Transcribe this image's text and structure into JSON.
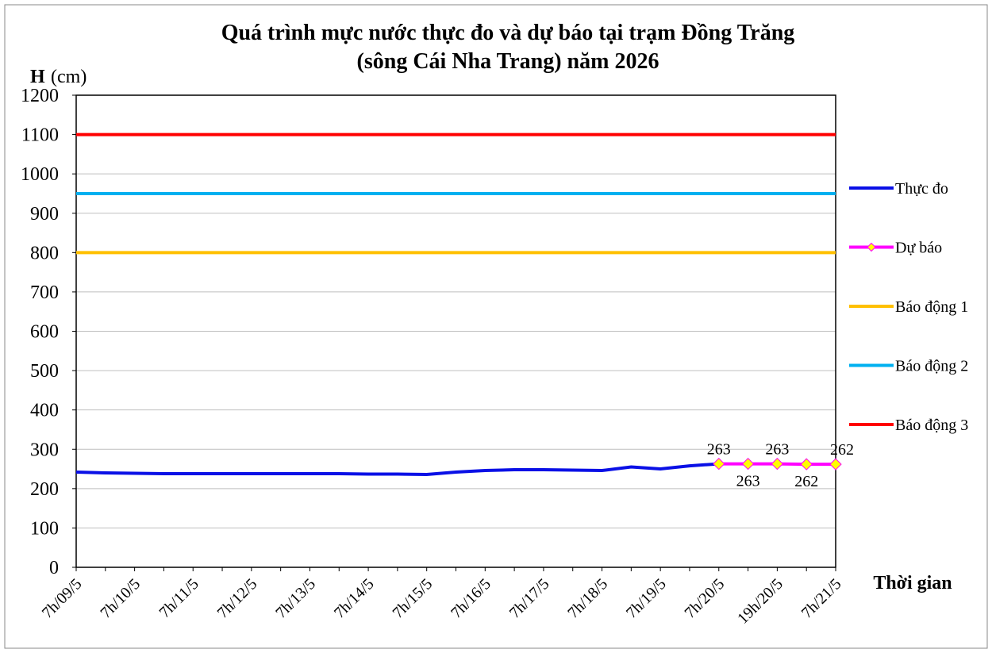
{
  "chart_data": {
    "type": "line",
    "title": [
      "Quá trình mực nước thực đo và dự báo tại trạm Đồng Trăng",
      "(sông Cái Nha Trang) năm 2026"
    ],
    "y_label": {
      "symbol": "H",
      "unit": "(cm)"
    },
    "x_label": "Thời gian",
    "categories": [
      "7h/09/5",
      null,
      "7h/10/5",
      null,
      "7h/11/5",
      null,
      "7h/12/5",
      null,
      "7h/13/5",
      null,
      "7h/14/5",
      null,
      "7h/15/5",
      null,
      "7h/16/5",
      null,
      "7h/17/5",
      null,
      "7h/18/5",
      null,
      "7h/19/5",
      null,
      "7h/20/5",
      null,
      "19h/20/5",
      null,
      "7h/21/5"
    ],
    "series": [
      {
        "name": "Thực đo",
        "color": "#0a10e6",
        "values": [
          242,
          240,
          239,
          238,
          238,
          238,
          238,
          238,
          238,
          238,
          237,
          237,
          236,
          242,
          246,
          248,
          248,
          247,
          246,
          255,
          250,
          258,
          263,
          null,
          null,
          null,
          null
        ]
      },
      {
        "name": "Dự báo",
        "color": "#ff00ff",
        "marker": "#ffff00",
        "values": [
          null,
          null,
          null,
          null,
          null,
          null,
          null,
          null,
          null,
          null,
          null,
          null,
          null,
          null,
          null,
          null,
          null,
          null,
          null,
          null,
          null,
          null,
          263,
          263,
          263,
          262,
          262
        ]
      }
    ],
    "alarm_levels": [
      {
        "name": "Báo động 1",
        "color": "#ffc000",
        "value": 800
      },
      {
        "name": "Báo động 2",
        "color": "#00b0f0",
        "value": 950
      },
      {
        "name": "Báo động 3",
        "color": "#ff0000",
        "value": 1100
      }
    ],
    "ylim": [
      0,
      1200
    ],
    "yticks": [
      0,
      100,
      200,
      300,
      400,
      500,
      600,
      700,
      800,
      900,
      1000,
      1100,
      1200
    ],
    "grid": true
  }
}
